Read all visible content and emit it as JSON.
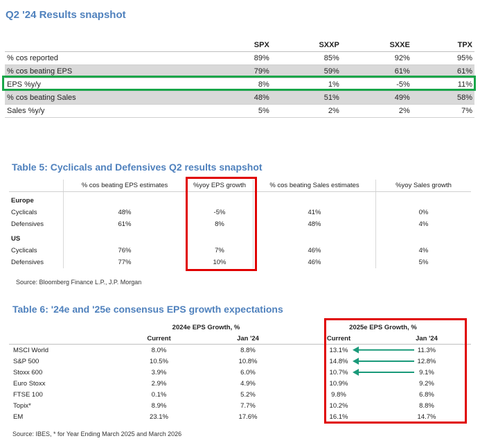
{
  "snapshot": {
    "title": "Q2 '24 Results snapshot",
    "columns": [
      "",
      "SPX",
      "SXXP",
      "SXXE",
      "TPX"
    ],
    "rows": [
      {
        "label": "% cos reported",
        "values": [
          "89%",
          "85%",
          "92%",
          "95%"
        ],
        "shaded": false
      },
      {
        "label": "% cos beating EPS",
        "values": [
          "79%",
          "59%",
          "61%",
          "61%"
        ],
        "shaded": true
      },
      {
        "label": "EPS %y/y",
        "values": [
          "8%",
          "1%",
          "-5%",
          "11%"
        ],
        "shaded": false
      },
      {
        "label": "% cos beating Sales",
        "values": [
          "48%",
          "51%",
          "49%",
          "58%"
        ],
        "shaded": true
      },
      {
        "label": "Sales %y/y",
        "values": [
          "5%",
          "2%",
          "2%",
          "7%"
        ],
        "shaded": false
      }
    ]
  },
  "table5": {
    "title": "Table 5: Cyclicals and Defensives Q2 results snapshot",
    "columns": [
      "",
      "% cos beating EPS estimates",
      "%yoy EPS growth",
      "% cos beating Sales estimates",
      "%yoy Sales growth"
    ],
    "groups": [
      {
        "name": "Europe",
        "rows": [
          {
            "label": "Cyclicals",
            "values": [
              "48%",
              "-5%",
              "41%",
              "0%"
            ]
          },
          {
            "label": "Defensives",
            "values": [
              "61%",
              "8%",
              "48%",
              "4%"
            ]
          }
        ]
      },
      {
        "name": "US",
        "rows": [
          {
            "label": "Cyclicals",
            "values": [
              "76%",
              "7%",
              "46%",
              "4%"
            ]
          },
          {
            "label": "Defensives",
            "values": [
              "77%",
              "10%",
              "46%",
              "5%"
            ]
          }
        ]
      }
    ],
    "source": "Source: Bloomberg Finance L.P., J.P. Morgan"
  },
  "table6": {
    "title": "Table 6: '24e and '25e consensus EPS growth expectations",
    "group_headers": [
      "2024e EPS Growth, %",
      "2025e EPS Growth, %"
    ],
    "sub_headers": [
      "Current",
      "Jan '24",
      "Current",
      "Jan '24"
    ],
    "rows": [
      {
        "label": "MSCI World",
        "values": [
          "8.0%",
          "8.8%",
          "13.1%",
          "11.3%"
        ],
        "arrow": true
      },
      {
        "label": "S&P 500",
        "values": [
          "10.5%",
          "10.8%",
          "14.8%",
          "12.8%"
        ],
        "arrow": true
      },
      {
        "label": "Stoxx 600",
        "values": [
          "3.9%",
          "6.0%",
          "10.7%",
          "9.1%"
        ],
        "arrow": true
      },
      {
        "label": "Euro Stoxx",
        "values": [
          "2.9%",
          "4.9%",
          "10.9%",
          "9.2%"
        ],
        "arrow": false
      },
      {
        "label": "FTSE 100",
        "values": [
          "0.1%",
          "5.2%",
          "9.8%",
          "6.8%"
        ],
        "arrow": false
      },
      {
        "label": "Topix*",
        "values": [
          "8.9%",
          "7.7%",
          "10.2%",
          "8.8%"
        ],
        "arrow": false
      },
      {
        "label": "EM",
        "values": [
          "23.1%",
          "17.6%",
          "16.1%",
          "14.7%"
        ],
        "arrow": false
      }
    ],
    "source": "Source: IBES, * for Year Ending March 2025 and March 2026"
  },
  "colors": {
    "heading": "#4f81bd",
    "highlight_red": "#e00000",
    "highlight_green": "#19a64a",
    "arrow": "#1a9a7a",
    "shade": "#d9d9d9"
  }
}
